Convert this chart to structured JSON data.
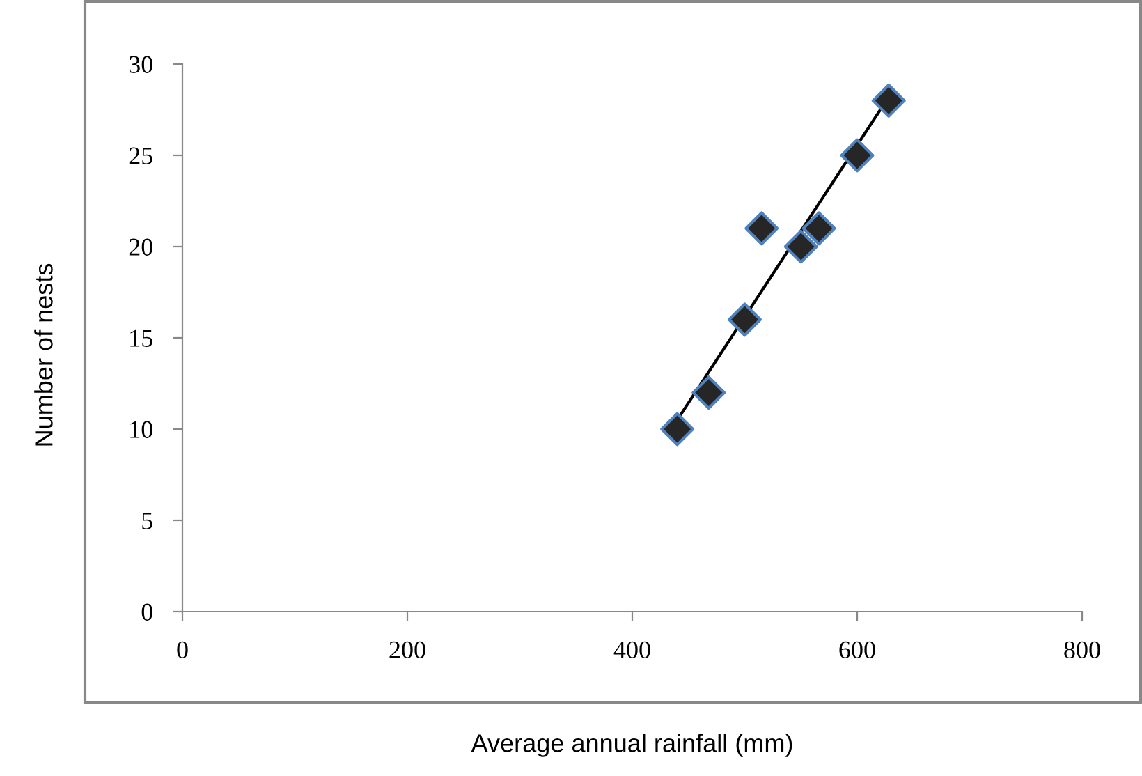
{
  "chart_data": {
    "type": "scatter",
    "xlabel": "Average annual rainfall (mm)",
    "ylabel": "Number of nests",
    "xlim": [
      0,
      800
    ],
    "xticks": [
      0,
      200,
      400,
      600,
      800
    ],
    "ylim": [
      0,
      30
    ],
    "yticks": [
      0,
      5,
      10,
      15,
      20,
      25,
      30
    ],
    "grid": false,
    "legend": false,
    "marker": "diamond",
    "series": [
      {
        "color": "#262626",
        "x": [
          440,
          468,
          500,
          515,
          550,
          566,
          600,
          628
        ],
        "values": [
          10,
          12,
          16,
          21,
          20,
          21,
          25,
          28
        ]
      },
      {
        "type": "line",
        "color": "#000000",
        "marker": "none",
        "line_style": "solid",
        "x": [
          440,
          628
        ],
        "values": [
          10.5,
          28.2
        ]
      }
    ]
  }
}
